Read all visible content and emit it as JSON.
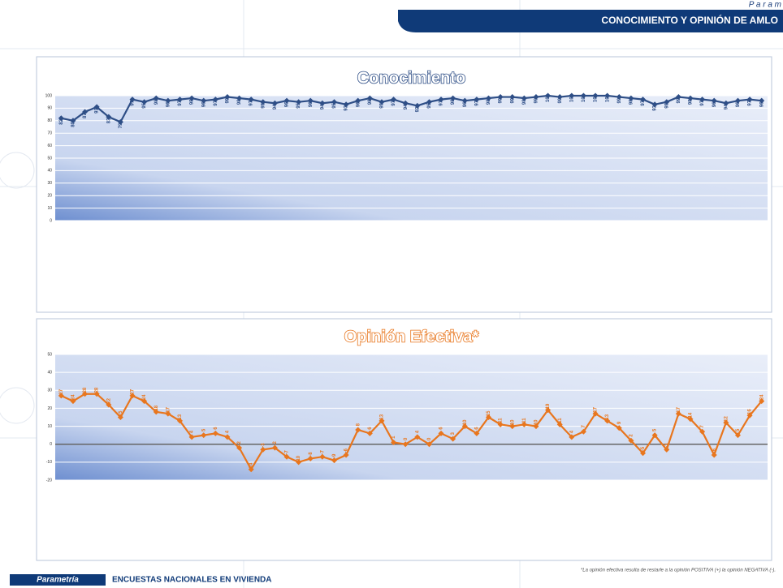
{
  "header": {
    "brand": "P a r a m",
    "title": "CONOCIMIENTO  Y OPINIÓN  DE AMLO"
  },
  "chart_data": [
    {
      "type": "line",
      "title": "Conocimiento",
      "color": "#2e4e86",
      "categories": [
        null,
        null,
        null,
        null,
        null,
        null,
        null,
        null,
        null,
        null,
        null,
        null,
        null,
        null,
        null,
        null,
        null,
        null,
        null,
        null,
        null,
        null,
        null,
        null,
        null,
        null,
        null,
        null,
        null,
        null,
        null,
        null,
        null,
        null,
        null,
        null,
        null,
        null,
        null,
        null,
        null,
        null,
        null,
        null,
        null,
        null,
        null,
        null,
        null,
        null,
        null,
        null,
        null,
        null,
        null,
        null,
        null,
        null,
        null,
        null
      ],
      "values": [
        82,
        80,
        87,
        91,
        83,
        79,
        97,
        95,
        98,
        96,
        97,
        98,
        96,
        97,
        99,
        98,
        97,
        95,
        94,
        96,
        95,
        96,
        94,
        95,
        93,
        96,
        98,
        95,
        97,
        94,
        92,
        95,
        97,
        98,
        96,
        97,
        98,
        99,
        99,
        98,
        99,
        100,
        99,
        100,
        100,
        100,
        100,
        99,
        98,
        97,
        93,
        95,
        99,
        98,
        97,
        96,
        94,
        96,
        97,
        96
      ],
      "ylim": [
        0,
        100
      ],
      "yticks": [
        0,
        10,
        20,
        30,
        40,
        50,
        60,
        70,
        80,
        90,
        100
      ],
      "grid": true
    },
    {
      "type": "line",
      "title": "Opinión  Efectiva*",
      "color": "#e8761e",
      "categories": [
        null,
        null,
        null,
        null,
        null,
        null,
        null,
        null,
        null,
        null,
        null,
        null,
        null,
        null,
        null,
        null,
        null,
        null,
        null,
        null,
        null,
        null,
        null,
        null,
        null,
        null,
        null,
        null,
        null,
        null,
        null,
        null,
        null,
        null,
        null,
        null,
        null,
        null,
        null,
        null,
        null,
        null,
        null,
        null,
        null,
        null,
        null,
        null,
        null,
        null,
        null,
        null,
        null,
        null,
        null,
        null,
        null,
        null,
        null,
        null
      ],
      "values": [
        27,
        24,
        28,
        28,
        22,
        15,
        27,
        24,
        18,
        17,
        13,
        4,
        5,
        6,
        4,
        -2,
        -14,
        -3,
        -2,
        -7,
        -10,
        -8,
        -7,
        -9,
        -6,
        8,
        6,
        13,
        1,
        0,
        4,
        0,
        6,
        3,
        10,
        6,
        15,
        11,
        10,
        11,
        10,
        19,
        11,
        4,
        7,
        17,
        13,
        9,
        2,
        -5,
        5,
        -3,
        17,
        14,
        7,
        -6,
        12,
        5,
        16,
        24
      ],
      "ylim": [
        -20,
        50
      ],
      "yticks": [
        -20,
        -10,
        0,
        10,
        20,
        30,
        40,
        50
      ],
      "grid": true
    }
  ],
  "footer": {
    "brand": "Parametría",
    "text": "ENCUESTAS NACIONALES  EN VIVIENDA",
    "note": "*La opinión efectiva resulta de restarle a la opinión POSITIVA (+) la opinión NEGATIVA (-)."
  }
}
